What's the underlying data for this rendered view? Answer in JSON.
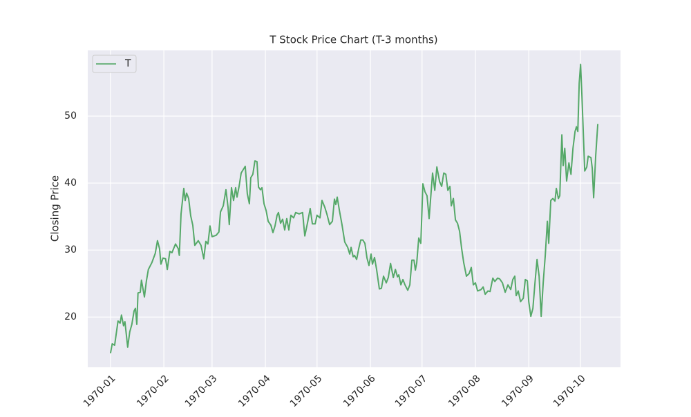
{
  "chart_data": {
    "type": "line",
    "title": "T Stock Price Chart (T-3 months)",
    "ylabel": "Closing Price",
    "x": [
      0,
      1,
      2.4,
      4.4,
      5.6,
      6.4,
      7.6,
      8.4,
      10,
      11.2,
      12.4,
      13.7,
      14.5,
      15.3,
      16,
      17.3,
      18,
      19.7,
      20.9,
      22,
      24,
      26,
      27.3,
      28.5,
      29.3,
      30.5,
      32,
      33,
      34.5,
      35.7,
      37.8,
      39.4,
      40,
      41,
      42.6,
      43.4,
      44.2,
      45.4,
      46.6,
      47.8,
      49,
      51,
      52.6,
      54.2,
      55.4,
      56.6,
      57.8,
      59,
      61.4,
      63,
      63.9,
      65.5,
      67.1,
      68.3,
      69,
      70.3,
      71.5,
      72.7,
      73.5,
      74.7,
      75.9,
      78.3,
      79.5,
      80.7,
      81.5,
      82.7,
      83.9,
      85.1,
      86,
      87.1,
      88,
      89.2,
      90.4,
      91.6,
      93.2,
      94.4,
      95.6,
      96.8,
      97.6,
      98.8,
      100,
      101.2,
      102.4,
      103.6,
      104.8,
      106.4,
      107.6,
      109.6,
      111.6,
      112.9,
      114.5,
      116,
      117.3,
      118.9,
      120,
      121.7,
      122.9,
      124.5,
      125.7,
      127.3,
      128.9,
      130.1,
      130.9,
      131.7,
      133,
      134.5,
      136.1,
      137.8,
      139,
      139.8,
      141,
      141.8,
      143,
      144.2,
      145.4,
      146.6,
      147.8,
      149,
      150.2,
      151.4,
      152.2,
      153.4,
      154.6,
      156.2,
      157.4,
      158.6,
      160.2,
      161.4,
      162.7,
      164.3,
      165.5,
      166.7,
      167.5,
      168.7,
      169.9,
      171.1,
      172.7,
      173.9,
      175.1,
      176.3,
      177.1,
      177.9,
      179.1,
      180.3,
      181.5,
      182.7,
      183.9,
      185.1,
      187.1,
      188.4,
      189.6,
      191.2,
      192.4,
      193.6,
      194.8,
      196,
      197.2,
      198,
      199.2,
      200.4,
      201.6,
      202.8,
      204,
      205.2,
      206.8,
      208.4,
      209.6,
      210.8,
      212,
      213.3,
      215.3,
      216.5,
      217.7,
      219.3,
      220.5,
      222.1,
      223.3,
      224.9,
      226.1,
      227.7,
      229.3,
      230.9,
      232.5,
      233.7,
      234.9,
      235.7,
      236.9,
      238.2,
      239.8,
      241,
      242.2,
      243,
      244.2,
      245.4,
      246.6,
      247.8,
      249,
      250.2,
      251.4,
      252.6,
      253.8,
      254.6,
      255.8,
      257,
      258.2,
      259,
      260.2,
      261,
      262.2,
      263,
      263.9,
      265,
      266.3,
      267.5,
      268.7,
      269.9,
      270.7,
      271.5,
      272.3,
      273.1,
      273.9,
      275.5,
      276.7,
      277.5,
      279.1,
      279.9,
      280.7,
      281.9,
      283.1
    ],
    "series": [
      {
        "name": "T",
        "color": "#55a868",
        "values": [
          14.6,
          16.0,
          15.8,
          19.4,
          19.1,
          20.3,
          18.7,
          19.3,
          15.5,
          17.8,
          18.9,
          20.9,
          21.3,
          18.9,
          23.6,
          23.7,
          25.5,
          23.0,
          25.4,
          27.1,
          28.1,
          29.5,
          31.4,
          30.2,
          27.9,
          28.8,
          28.7,
          27.1,
          29.8,
          29.6,
          30.9,
          30.2,
          29.2,
          35.4,
          39.2,
          37.4,
          38.5,
          37.7,
          35.1,
          33.7,
          30.7,
          31.4,
          30.7,
          28.7,
          31.3,
          30.9,
          33.6,
          32.0,
          32.2,
          32.7,
          35.7,
          36.6,
          39.0,
          36.4,
          33.8,
          39.3,
          37.4,
          39.3,
          37.9,
          39.5,
          41.5,
          42.5,
          38.4,
          36.9,
          40.8,
          41.3,
          43.3,
          43.2,
          39.4,
          39.0,
          39.3,
          36.9,
          35.9,
          34.3,
          33.7,
          32.6,
          33.6,
          35.2,
          35.6,
          34.0,
          34.6,
          33.0,
          34.7,
          33.0,
          35.2,
          34.8,
          35.6,
          35.4,
          35.6,
          32.1,
          34.1,
          36.2,
          33.9,
          33.9,
          35.2,
          34.8,
          37.4,
          36.4,
          35.4,
          33.8,
          34.3,
          37.6,
          36.8,
          37.9,
          35.9,
          33.8,
          31.2,
          30.4,
          29.4,
          30.4,
          29.0,
          29.2,
          28.6,
          30.2,
          31.5,
          31.5,
          31.0,
          28.8,
          27.7,
          29.4,
          27.9,
          28.9,
          27.1,
          24.2,
          24.3,
          26.1,
          25.1,
          25.9,
          28.0,
          25.9,
          27.1,
          26.0,
          26.3,
          24.8,
          25.6,
          24.8,
          24.0,
          24.8,
          28.5,
          28.5,
          27.0,
          28.1,
          31.8,
          31.0,
          39.9,
          38.7,
          38.1,
          34.7,
          41.5,
          38.9,
          42.4,
          40.2,
          39.5,
          41.5,
          41.3,
          38.9,
          39.5,
          36.6,
          37.7,
          34.5,
          34.0,
          32.8,
          30.2,
          28.1,
          26.1,
          26.5,
          27.4,
          24.8,
          25.1,
          23.9,
          24.1,
          24.5,
          23.4,
          23.9,
          23.8,
          25.8,
          25.3,
          25.8,
          25.7,
          25.1,
          23.7,
          24.8,
          24.1,
          25.6,
          26.1,
          23.2,
          23.9,
          22.3,
          22.8,
          25.6,
          25.4,
          22.3,
          20.1,
          21.3,
          25.1,
          28.6,
          26.1,
          20.1,
          25.1,
          29.2,
          34.3,
          31.0,
          37.4,
          37.7,
          37.3,
          39.2,
          37.7,
          38.1,
          47.2,
          42.6,
          45.2,
          40.3,
          43.0,
          41.3,
          45.2,
          47.7,
          48.4,
          47.7,
          54.9,
          57.7,
          52.9,
          41.8,
          42.4,
          44.0,
          43.8,
          42.2,
          37.8,
          44.1,
          48.8
        ]
      }
    ],
    "xlim": [
      -13.2,
      296.3
    ],
    "xticks": [
      {
        "value": 0,
        "label": "1970-01"
      },
      {
        "value": 31,
        "label": "1970-02"
      },
      {
        "value": 59,
        "label": "1970-03"
      },
      {
        "value": 90,
        "label": "1970-04"
      },
      {
        "value": 120,
        "label": "1970-05"
      },
      {
        "value": 151,
        "label": "1970-06"
      },
      {
        "value": 181,
        "label": "1970-07"
      },
      {
        "value": 212,
        "label": "1970-08"
      },
      {
        "value": 243,
        "label": "1970-09"
      },
      {
        "value": 273,
        "label": "1970-10"
      }
    ],
    "ylim": [
      12.5,
      59.8
    ],
    "yticks": [
      20,
      30,
      40,
      50
    ],
    "grid": true,
    "legend": "upper left"
  }
}
